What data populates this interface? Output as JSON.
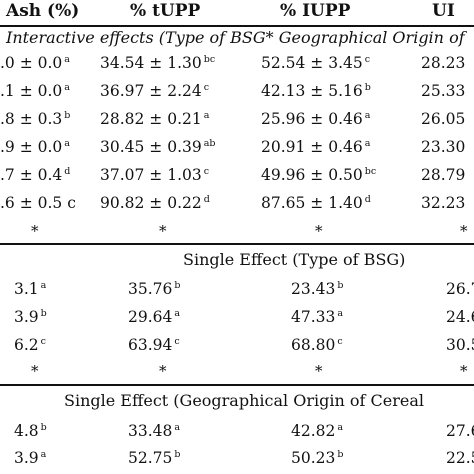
{
  "headers": [
    "Ash (%)",
    "% tUPP",
    "% IUPP",
    "UI"
  ],
  "section_interactive": {
    "caption": "Interactive effects (Type of BSG* Geographical Origin of",
    "rows": [
      {
        "c0": ".0 ± 0.0",
        "s0": "a",
        "c1": "34.54 ± 1.30",
        "s1": "bc",
        "c2": "52.54 ± 3.45",
        "s2": "c",
        "c3": "28.23"
      },
      {
        "c0": ".1 ± 0.0",
        "s0": "a",
        "c1": "36.97 ± 2.24",
        "s1": "c",
        "c2": "42.13 ± 5.16",
        "s2": "b",
        "c3": "25.33"
      },
      {
        "c0": ".8 ± 0.3",
        "s0": "b",
        "c1": "28.82 ± 0.21",
        "s1": "a",
        "c2": "25.96 ± 0.46",
        "s2": "a",
        "c3": "26.05"
      },
      {
        "c0": ".9 ± 0.0",
        "s0": "a",
        "c1": "30.45 ± 0.39",
        "s1": "ab",
        "c2": "20.91 ± 0.46",
        "s2": "a",
        "c3": "23.30"
      },
      {
        "c0": ".7 ± 0.4",
        "s0": "d",
        "c1": "37.07 ± 1.03",
        "s1": "c",
        "c2": "49.96 ± 0.50",
        "s2": "bc",
        "c3": "28.79"
      },
      {
        "c0": ".6 ± 0.5 c",
        "s0": "",
        "c1": "90.82 ± 0.22",
        "s1": "d",
        "c2": "87.65 ± 1.40",
        "s2": "d",
        "c3": "32.23"
      }
    ],
    "stars": [
      "*",
      "*",
      "*",
      "*"
    ]
  },
  "section_type": {
    "caption": "Single Effect (Type of BSG)",
    "rows": [
      {
        "c0": "3.1",
        "s0": "a",
        "c1": "35.76",
        "s1": "b",
        "c2": "23.43",
        "s2": "b",
        "c3": "26.7"
      },
      {
        "c0": "3.9",
        "s0": "b",
        "c1": "29.64",
        "s1": "a",
        "c2": "47.33",
        "s2": "a",
        "c3": "24.6"
      },
      {
        "c0": "6.2",
        "s0": "c",
        "c1": "63.94",
        "s1": "c",
        "c2": "68.80",
        "s2": "c",
        "c3": "30.5"
      }
    ],
    "stars": [
      "*",
      "*",
      "*",
      "*"
    ]
  },
  "section_origin": {
    "caption": "Single Effect (Geographical Origin of Cereal",
    "rows": [
      {
        "c0": "4.8",
        "s0": "b",
        "c1": "33.48",
        "s1": "a",
        "c2": "42.82",
        "s2": "a",
        "c3": "27.6"
      },
      {
        "c0": "3.9",
        "s0": "a",
        "c1": "52.75",
        "s1": "b",
        "c2": "50.23",
        "s2": "b",
        "c3": "22.5"
      }
    ]
  }
}
